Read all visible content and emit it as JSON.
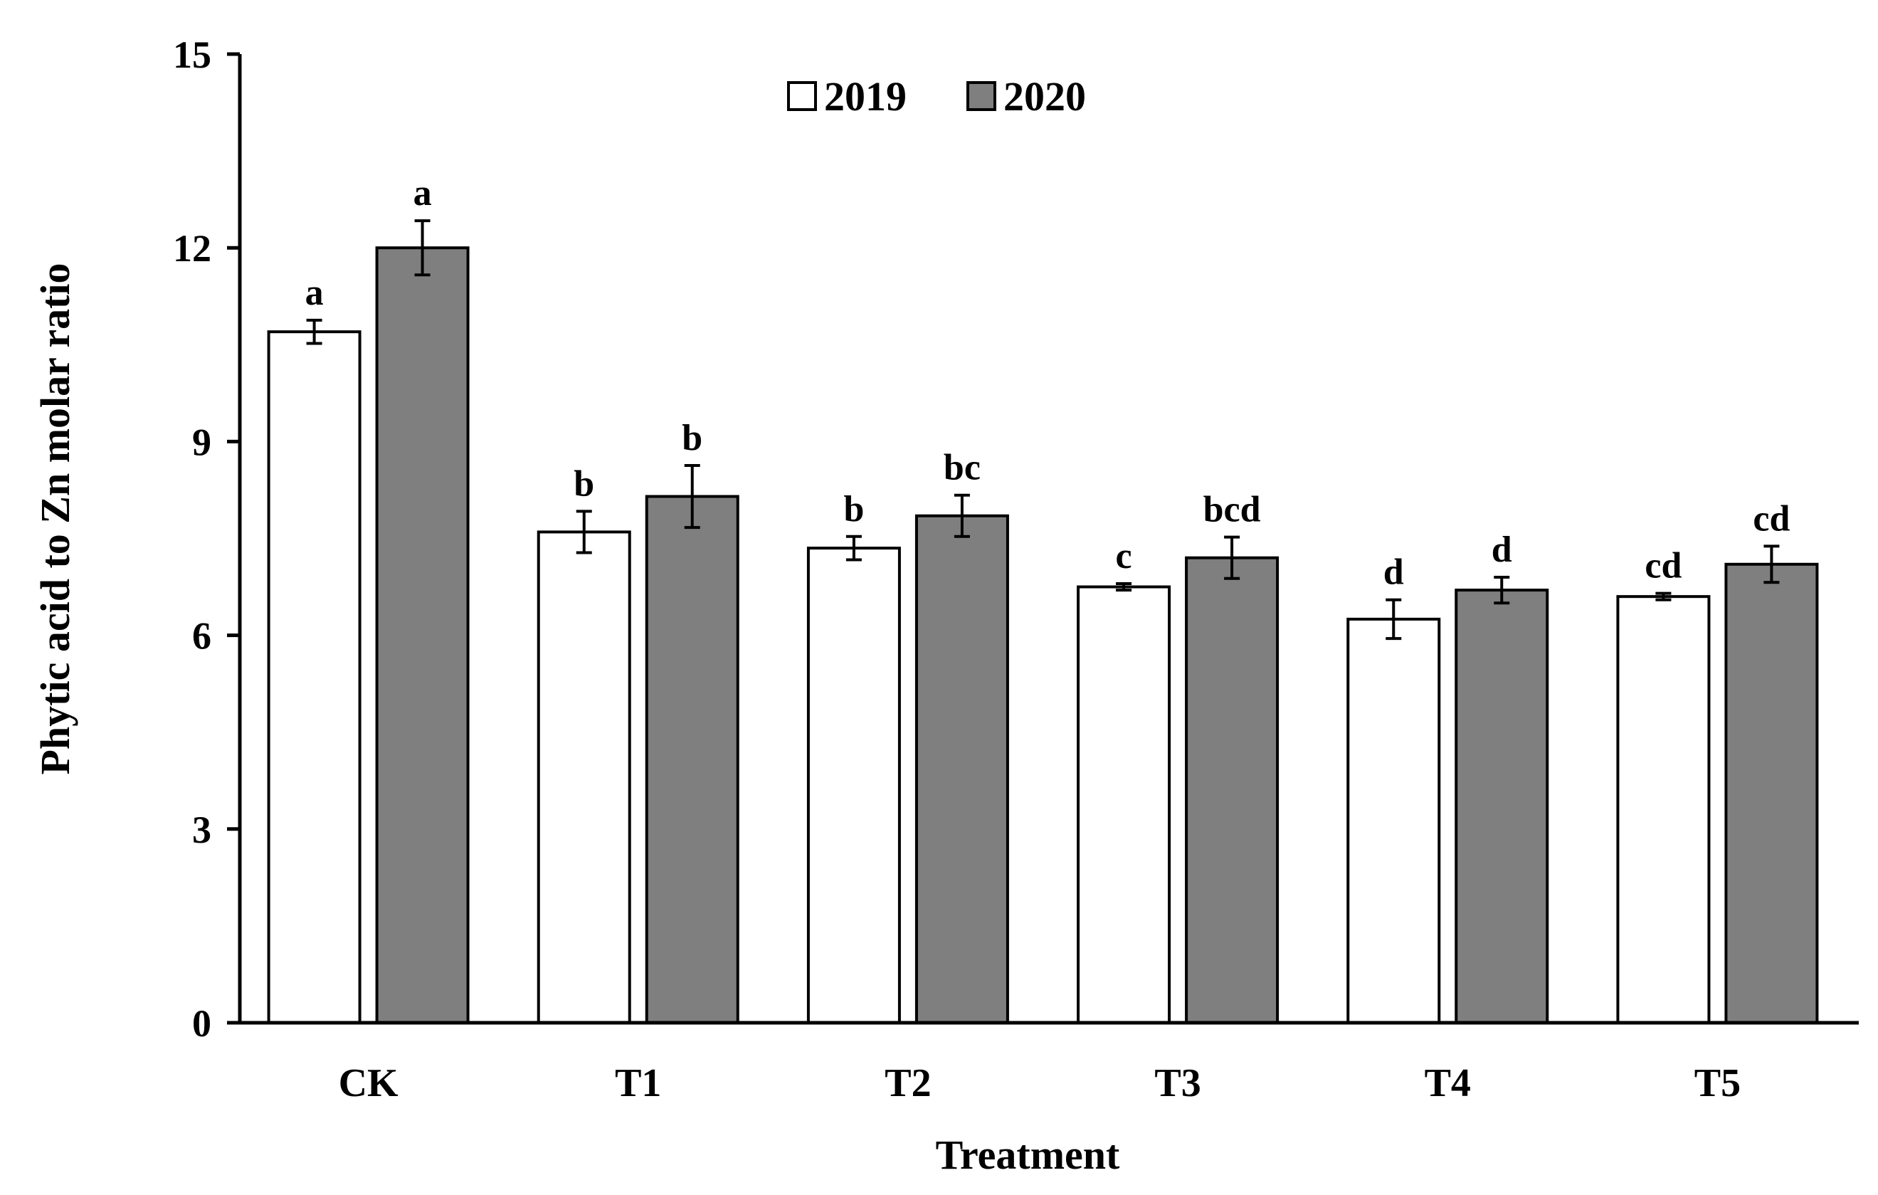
{
  "chart_data": {
    "type": "bar",
    "title": "",
    "xlabel": "Treatment",
    "ylabel": "Phytic acid to Zn molar ratio",
    "ylim": [
      0,
      15
    ],
    "yticks": [
      0,
      3,
      6,
      9,
      12,
      15
    ],
    "grid": false,
    "legend_position": "top-center",
    "categories": [
      "CK",
      "T1",
      "T2",
      "T3",
      "T4",
      "T5"
    ],
    "series": [
      {
        "name": "2019",
        "color": "#ffffff",
        "values": [
          10.7,
          7.6,
          7.35,
          6.75,
          6.25,
          6.6
        ],
        "errors": [
          0.18,
          0.32,
          0.18,
          0.05,
          0.3,
          0.05
        ],
        "letters": [
          "a",
          "b",
          "b",
          "c",
          "d",
          "cd"
        ]
      },
      {
        "name": "2020",
        "color": "#7f7f7f",
        "values": [
          12.0,
          8.15,
          7.85,
          7.2,
          6.7,
          7.1
        ],
        "errors": [
          0.42,
          0.48,
          0.32,
          0.32,
          0.2,
          0.28
        ],
        "letters": [
          "a",
          "b",
          "bc",
          "bcd",
          "d",
          "cd"
        ]
      }
    ]
  }
}
